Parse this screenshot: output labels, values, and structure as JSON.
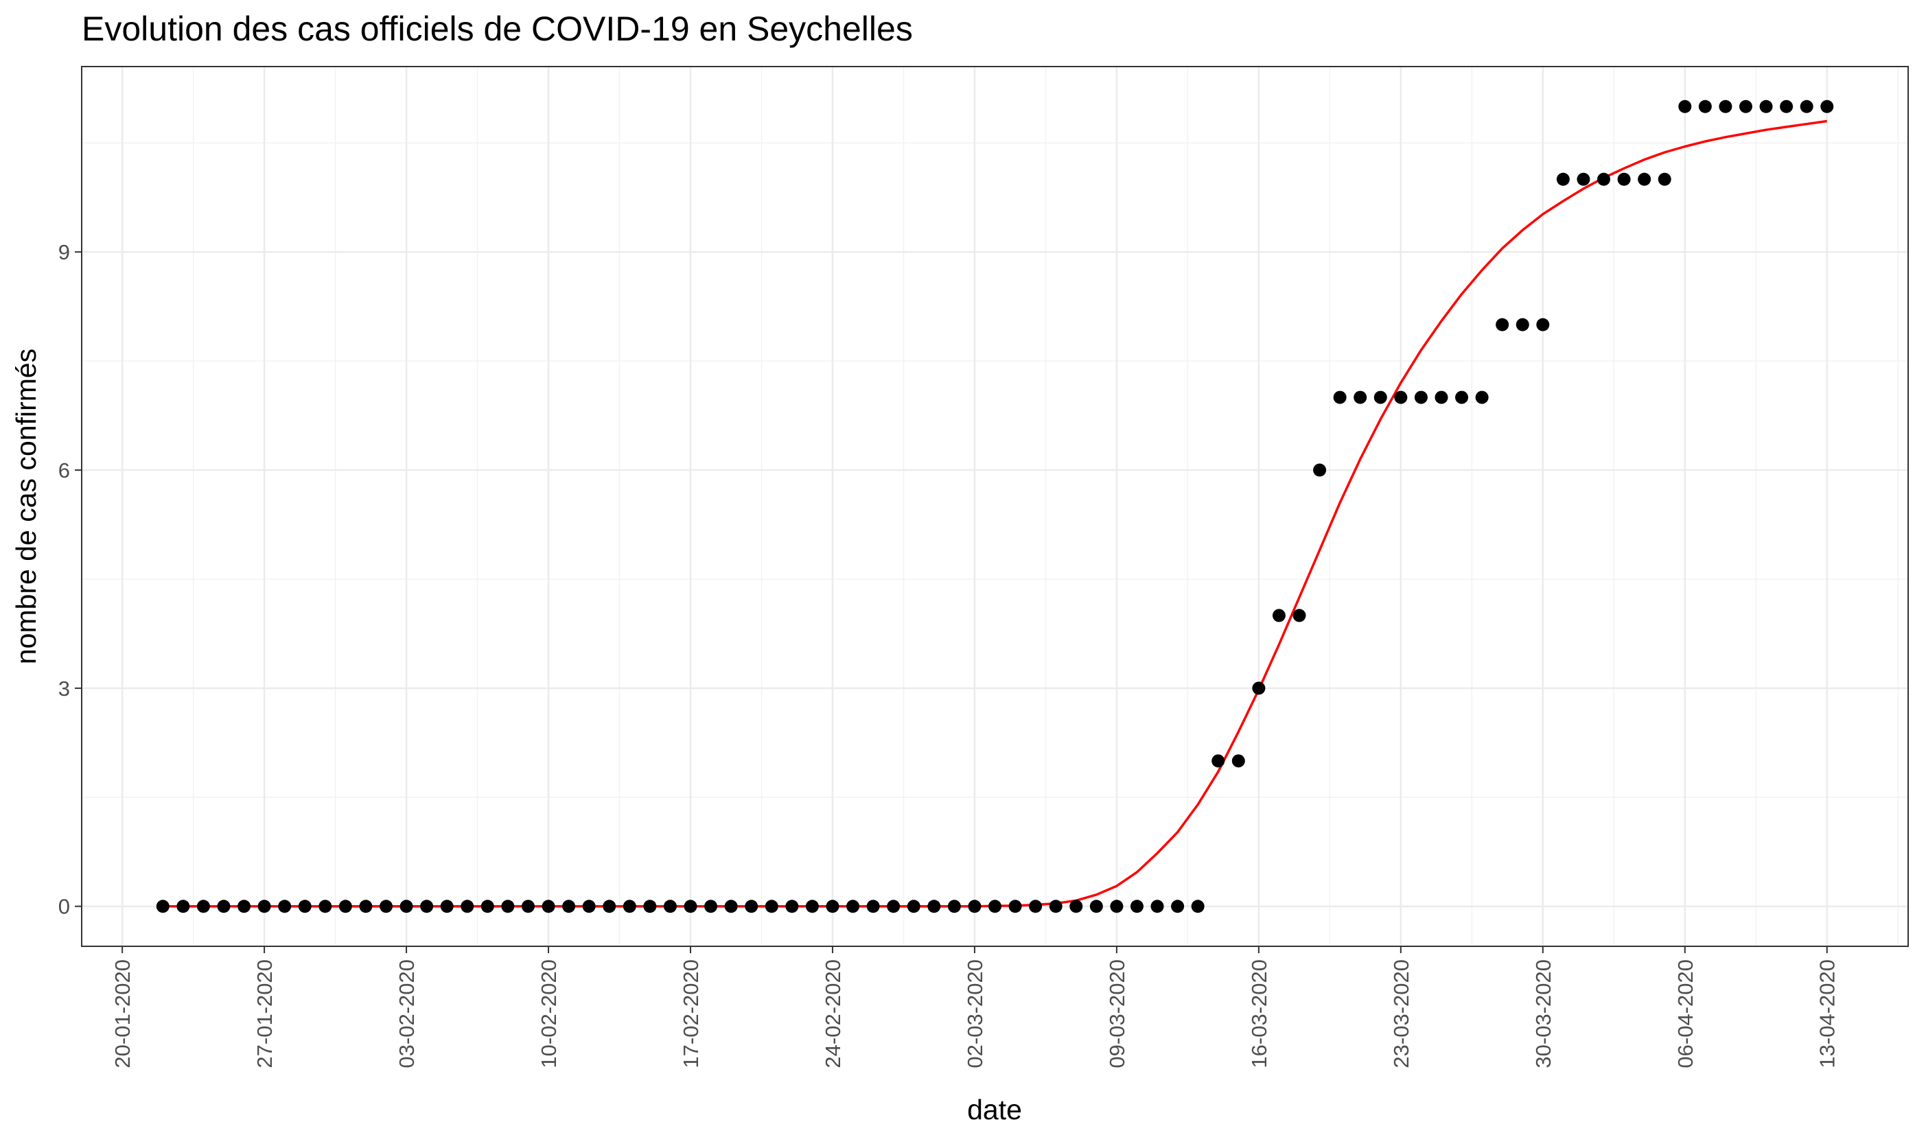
{
  "chart_data": {
    "type": "scatter",
    "title": "Evolution des cas officiels de COVID-19 en Seychelles",
    "xlabel": "date",
    "ylabel": "nombre de cas confirmés",
    "x_axis_type": "date",
    "x_range": [
      "2020-01-18",
      "2020-04-17"
    ],
    "ylim": [
      -0.55,
      11.55
    ],
    "x_ticks": [
      {
        "date": "2020-01-20",
        "label": "20-01-2020"
      },
      {
        "date": "2020-01-27",
        "label": "27-01-2020"
      },
      {
        "date": "2020-02-03",
        "label": "03-02-2020"
      },
      {
        "date": "2020-02-10",
        "label": "10-02-2020"
      },
      {
        "date": "2020-02-17",
        "label": "17-02-2020"
      },
      {
        "date": "2020-02-24",
        "label": "24-02-2020"
      },
      {
        "date": "2020-03-02",
        "label": "02-03-2020"
      },
      {
        "date": "2020-03-09",
        "label": "09-03-2020"
      },
      {
        "date": "2020-03-16",
        "label": "16-03-2020"
      },
      {
        "date": "2020-03-23",
        "label": "23-03-2020"
      },
      {
        "date": "2020-03-30",
        "label": "30-03-2020"
      },
      {
        "date": "2020-04-06",
        "label": "06-04-2020"
      },
      {
        "date": "2020-04-13",
        "label": "13-04-2020"
      }
    ],
    "y_ticks": [
      {
        "value": 0,
        "label": "0"
      },
      {
        "value": 3,
        "label": "3"
      },
      {
        "value": 6,
        "label": "6"
      },
      {
        "value": 9,
        "label": "9"
      }
    ],
    "grid": true,
    "series": [
      {
        "kind": "points",
        "color": "#000000",
        "x": [
          "2020-01-22",
          "2020-01-23",
          "2020-01-24",
          "2020-01-25",
          "2020-01-26",
          "2020-01-27",
          "2020-01-28",
          "2020-01-29",
          "2020-01-30",
          "2020-01-31",
          "2020-02-01",
          "2020-02-02",
          "2020-02-03",
          "2020-02-04",
          "2020-02-05",
          "2020-02-06",
          "2020-02-07",
          "2020-02-08",
          "2020-02-09",
          "2020-02-10",
          "2020-02-11",
          "2020-02-12",
          "2020-02-13",
          "2020-02-14",
          "2020-02-15",
          "2020-02-16",
          "2020-02-17",
          "2020-02-18",
          "2020-02-19",
          "2020-02-20",
          "2020-02-21",
          "2020-02-22",
          "2020-02-23",
          "2020-02-24",
          "2020-02-25",
          "2020-02-26",
          "2020-02-27",
          "2020-02-28",
          "2020-02-29",
          "2020-03-01",
          "2020-03-02",
          "2020-03-03",
          "2020-03-04",
          "2020-03-05",
          "2020-03-06",
          "2020-03-07",
          "2020-03-08",
          "2020-03-09",
          "2020-03-10",
          "2020-03-11",
          "2020-03-12",
          "2020-03-13",
          "2020-03-14",
          "2020-03-15",
          "2020-03-16",
          "2020-03-17",
          "2020-03-18",
          "2020-03-19",
          "2020-03-20",
          "2020-03-21",
          "2020-03-22",
          "2020-03-23",
          "2020-03-24",
          "2020-03-25",
          "2020-03-26",
          "2020-03-27",
          "2020-03-28",
          "2020-03-29",
          "2020-03-30",
          "2020-03-31",
          "2020-04-01",
          "2020-04-02",
          "2020-04-03",
          "2020-04-04",
          "2020-04-05",
          "2020-04-06",
          "2020-04-07",
          "2020-04-08",
          "2020-04-09",
          "2020-04-10",
          "2020-04-11",
          "2020-04-12",
          "2020-04-13"
        ],
        "values": [
          0,
          0,
          0,
          0,
          0,
          0,
          0,
          0,
          0,
          0,
          0,
          0,
          0,
          0,
          0,
          0,
          0,
          0,
          0,
          0,
          0,
          0,
          0,
          0,
          0,
          0,
          0,
          0,
          0,
          0,
          0,
          0,
          0,
          0,
          0,
          0,
          0,
          0,
          0,
          0,
          0,
          0,
          0,
          0,
          0,
          0,
          0,
          0,
          0,
          0,
          0,
          0,
          2,
          2,
          3,
          4,
          4,
          6,
          7,
          7,
          7,
          7,
          7,
          7,
          7,
          7,
          8,
          8,
          8,
          10,
          10,
          10,
          10,
          10,
          10,
          11,
          11,
          11,
          11,
          11,
          11,
          11,
          11
        ]
      },
      {
        "kind": "fitted-curve",
        "color": "#ff0000",
        "x": [
          "2020-01-22",
          "2020-01-29",
          "2020-02-05",
          "2020-02-12",
          "2020-02-19",
          "2020-02-26",
          "2020-03-02",
          "2020-03-04",
          "2020-03-05",
          "2020-03-06",
          "2020-03-07",
          "2020-03-08",
          "2020-03-09",
          "2020-03-10",
          "2020-03-11",
          "2020-03-12",
          "2020-03-13",
          "2020-03-14",
          "2020-03-15",
          "2020-03-16",
          "2020-03-17",
          "2020-03-18",
          "2020-03-19",
          "2020-03-20",
          "2020-03-21",
          "2020-03-22",
          "2020-03-23",
          "2020-03-24",
          "2020-03-25",
          "2020-03-26",
          "2020-03-27",
          "2020-03-28",
          "2020-03-29",
          "2020-03-30",
          "2020-03-31",
          "2020-04-01",
          "2020-04-02",
          "2020-04-03",
          "2020-04-04",
          "2020-04-05",
          "2020-04-06",
          "2020-04-07",
          "2020-04-08",
          "2020-04-09",
          "2020-04-10",
          "2020-04-11",
          "2020-04-12",
          "2020-04-13"
        ],
        "values": [
          0,
          0,
          0,
          0,
          0,
          0,
          0,
          0.01,
          0.02,
          0.04,
          0.08,
          0.16,
          0.28,
          0.47,
          0.73,
          1.02,
          1.4,
          1.85,
          2.4,
          2.98,
          3.6,
          4.25,
          4.9,
          5.55,
          6.15,
          6.7,
          7.2,
          7.65,
          8.05,
          8.42,
          8.75,
          9.05,
          9.3,
          9.52,
          9.7,
          9.87,
          10.02,
          10.15,
          10.27,
          10.37,
          10.45,
          10.52,
          10.58,
          10.63,
          10.68,
          10.72,
          10.76,
          10.8
        ]
      }
    ]
  }
}
